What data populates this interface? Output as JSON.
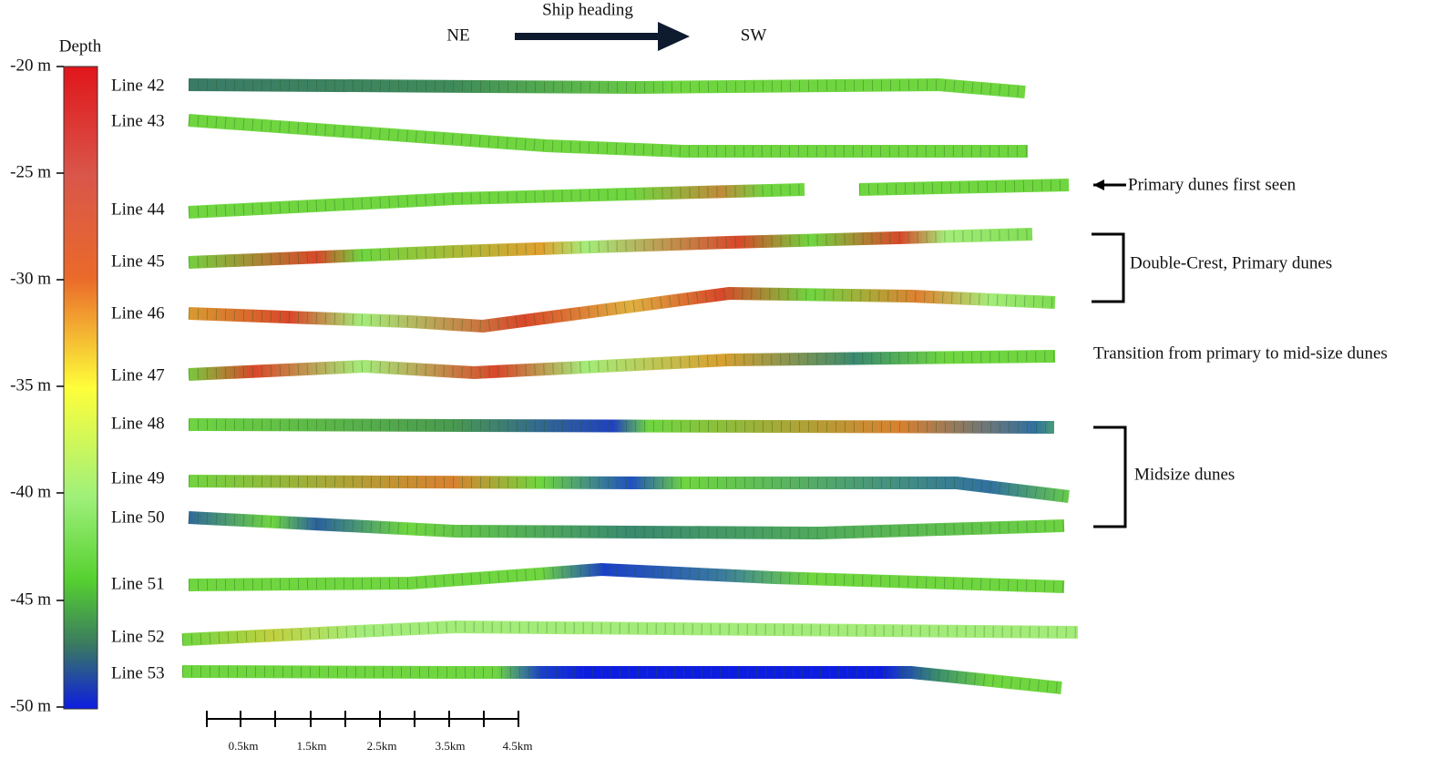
{
  "colorbar": {
    "title": "Depth",
    "ticks": [
      "-20 m",
      "-25 m",
      "-30 m",
      "-35 m",
      "-40 m",
      "-45 m",
      "-50 m"
    ]
  },
  "heading": {
    "label": "Ship heading",
    "from": "NE",
    "to": "SW"
  },
  "lines": [
    "Line 42",
    "Line 43",
    "Line 44",
    "Line 45",
    "Line 46",
    "Line 47",
    "Line 48",
    "Line 49",
    "Line 50",
    "Line 51",
    "Line 52",
    "Line 53"
  ],
  "annotations": {
    "first_seen": "Primary dunes first seen",
    "double_crest": "Double-Crest, Primary dunes",
    "transition": "Transition from primary to mid-size dunes",
    "midsize": "Midsize dunes"
  },
  "scale_bar": [
    "0.5km",
    "1.5km",
    "2.5km",
    "3.5km",
    "4.5km"
  ]
}
